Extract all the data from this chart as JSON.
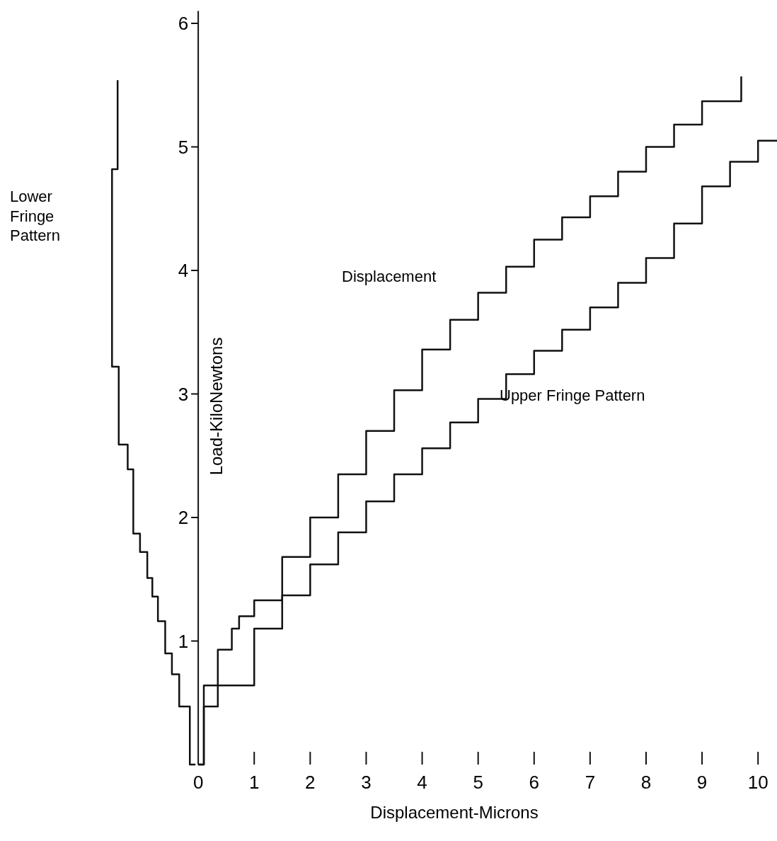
{
  "chart_data": {
    "type": "step",
    "xlabel": "Displacement-Microns",
    "ylabel": "Load-KiloNewtons",
    "xlim": [
      -3.44,
      10.44
    ],
    "ylim": [
      0,
      6.1
    ],
    "xticks": [
      0,
      1,
      2,
      3,
      4,
      5,
      6,
      7,
      8,
      9,
      10
    ],
    "yticks": [
      1,
      2,
      3,
      4,
      5,
      6
    ],
    "grid": false,
    "annotations": [
      "Lower Fringe Pattern",
      "Displacement",
      "Upper Fringe Pattern"
    ],
    "series": [
      {
        "color": "#111111",
        "x": [
          0,
          0.1,
          0.35,
          0.6,
          0.73,
          1,
          1.5,
          2,
          2.5,
          3,
          3.5,
          4,
          4.5,
          5,
          5.5,
          6,
          6.5,
          7,
          7.5,
          8,
          8.5,
          9,
          9.7
        ],
        "values": [
          0,
          0.64,
          0.93,
          1.1,
          1.2,
          1.33,
          1.68,
          2.0,
          2.35,
          2.7,
          3.03,
          3.36,
          3.6,
          3.82,
          4.03,
          4.25,
          4.43,
          4.6,
          4.8,
          5.0,
          5.18,
          5.37,
          5.57
        ]
      },
      {
        "color": "#111111",
        "x": [
          0,
          0.1,
          0.35,
          1,
          1.5,
          2,
          2.5,
          3,
          3.5,
          4,
          4.5,
          5,
          5.5,
          6,
          6.5,
          7,
          7.5,
          8,
          8.5,
          9,
          9.5,
          10,
          10.4
        ],
        "values": [
          0,
          0.47,
          0.64,
          1.1,
          1.37,
          1.62,
          1.88,
          2.13,
          2.35,
          2.56,
          2.77,
          2.96,
          3.16,
          3.35,
          3.52,
          3.7,
          3.9,
          4.1,
          4.38,
          4.68,
          4.88,
          5.05,
          5.3
        ]
      },
      {
        "color": "#111111",
        "x": [
          -0.05,
          -0.15,
          -0.15,
          -0.34,
          -0.34,
          -0.47,
          -0.47,
          -0.59,
          -0.59,
          -0.72,
          -0.72,
          -0.82,
          -0.82,
          -0.91,
          -0.91,
          -1.04,
          -1.04,
          -1.16,
          -1.16,
          -1.26,
          -1.26,
          -1.42,
          -1.42,
          -1.54,
          -1.54,
          -1.44,
          -1.44
        ],
        "values": [
          0,
          0.18,
          0.47,
          0.47,
          0.73,
          0.73,
          0.9,
          0.9,
          1.16,
          1.16,
          1.36,
          1.36,
          1.51,
          1.51,
          1.72,
          1.72,
          1.87,
          1.87,
          2.39,
          2.39,
          2.59,
          2.59,
          3.22,
          3.22,
          4.82,
          4.82,
          5.54
        ]
      }
    ]
  }
}
